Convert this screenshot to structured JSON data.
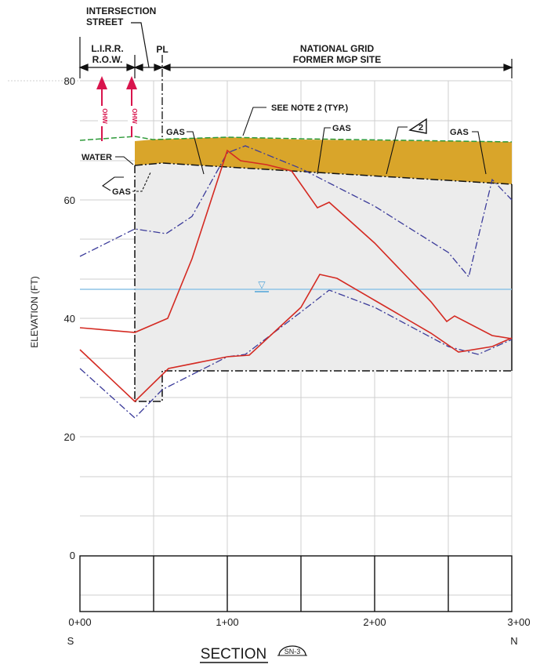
{
  "header": {
    "intersection_line1": "INTERSECTION",
    "intersection_line2": "STREET",
    "lirr_line1": "L.I.R.R.",
    "lirr_line2": "R.O.W.",
    "pl": "PL",
    "grid_line1": "NATIONAL GRID",
    "grid_line2": "FORMER MGP SITE"
  },
  "labels": {
    "see_note": "SEE NOTE 2 (TYP.)",
    "note_number": "2",
    "gas_1": "GAS",
    "gas_2": "GAS",
    "gas_3": "GAS",
    "gas_4": "GAS",
    "water": "WATER",
    "ohw_1": "OHW",
    "ohw_2": "OHW",
    "water_table_symbol": "▽"
  },
  "axes": {
    "ylabel": "ELEVATION (FT)",
    "y_ticks": [
      "80",
      "60",
      "40",
      "20",
      "0"
    ],
    "x_ticks": [
      "0+00",
      "1+00",
      "2+00",
      "3+00"
    ],
    "left_dir": "S",
    "right_dir": "N"
  },
  "title": {
    "text": "SECTION",
    "ref": "SN-3"
  },
  "colors": {
    "fill_material": "#d9a52a",
    "gray_fill": "#ececec",
    "red_line": "#d42a22",
    "blue_dash": "#3b3b9a",
    "water_line": "#8ec4e6",
    "green_ground": "#2e9a3a",
    "magenta": "#d8144c"
  }
}
